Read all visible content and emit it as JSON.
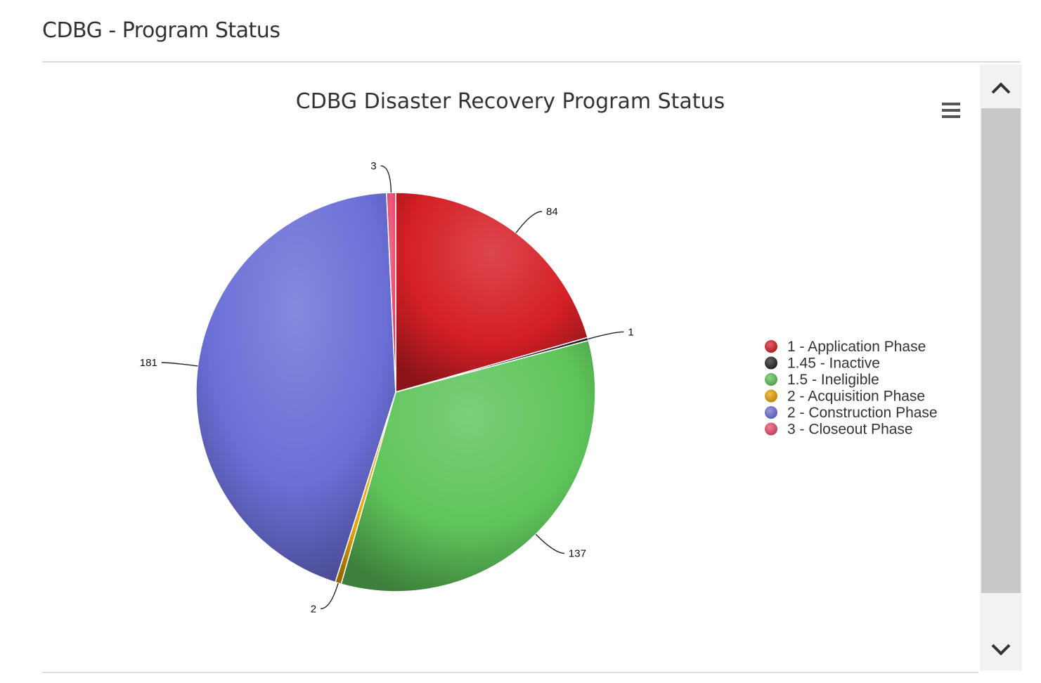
{
  "panel": {
    "title": "CDBG - Program Status"
  },
  "menu": {
    "icon": "hamburger-menu-icon"
  },
  "scrollbar": {
    "up_icon": "chevron-up-icon",
    "down_icon": "chevron-down-icon"
  },
  "chart_data": {
    "type": "pie",
    "title": "CDBG Disaster Recovery Program Status",
    "legend_position": "right",
    "categories": [
      "1 - Application Phase",
      "1.45 - Inactive",
      "1.5 - Ineligible",
      "2 - Acquisition Phase",
      "2 - Construction Phase",
      "3 - Closeout Phase"
    ],
    "values": [
      84,
      1,
      137,
      2,
      181,
      3
    ],
    "colors": [
      "#d41f26",
      "#222222",
      "#5ec45a",
      "#e8a400",
      "#6b6fd6",
      "#e84a6f"
    ]
  }
}
